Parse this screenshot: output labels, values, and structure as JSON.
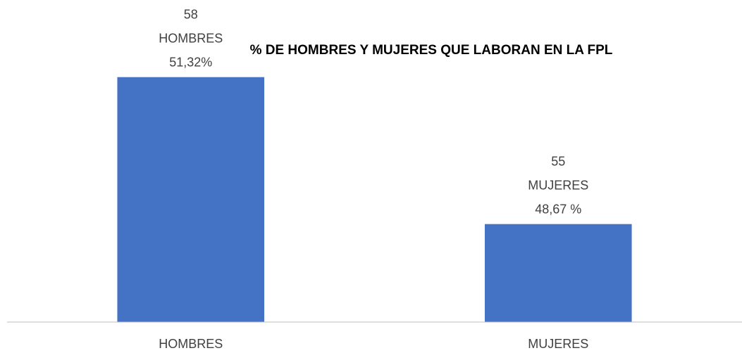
{
  "chart_data": {
    "type": "bar",
    "title": "% DE HOMBRES Y MUJERES QUE LABORAN EN LA FPL",
    "categories": [
      "HOMBRES",
      "MUJERES"
    ],
    "values": [
      58,
      55
    ],
    "percentages": [
      51.32,
      48.67
    ],
    "percentage_labels": [
      "51,32%",
      "48,67 %"
    ],
    "color": "#4472c4",
    "ylim": [
      53,
      59
    ]
  }
}
